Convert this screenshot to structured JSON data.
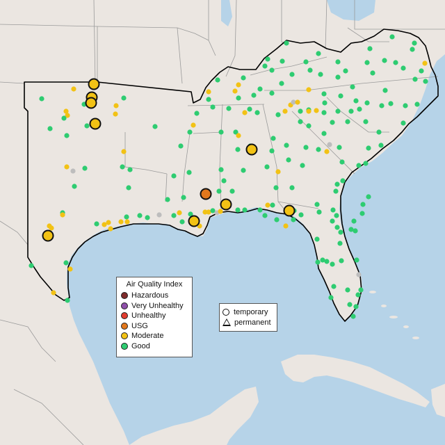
{
  "map": {
    "colors": {
      "land": "#ebe6e1",
      "water": "#b6d3e8",
      "border": "#9a9a9a",
      "outline": "#000000",
      "Hazardous": "#7e2b2b",
      "Very Unhealthy": "#8e4fa9",
      "Unhealthy": "#e13d2f",
      "USG": "#e2781d",
      "Moderate": "#f2c215",
      "Good": "#2ecc71",
      "Unknown": "#bdbdbd"
    },
    "stations_small": [
      [
        "Good",
        60,
        142
      ],
      [
        "Good",
        72,
        185
      ],
      [
        "Good",
        96,
        195
      ],
      [
        "Moderate",
        95,
        160
      ],
      [
        "Moderate",
        97,
        166
      ],
      [
        "Moderate",
        106,
        128
      ],
      [
        "Good",
        92,
        170
      ],
      [
        "Good",
        125,
        181
      ],
      [
        "Good",
        121,
        150
      ],
      [
        "Good",
        178,
        141
      ],
      [
        "Moderate",
        166,
        164
      ],
      [
        "Moderate",
        167,
        152
      ],
      [
        "Good",
        223,
        182
      ],
      [
        "Moderate",
        178,
        218
      ],
      [
        "Good",
        176,
        240
      ],
      [
        "Good",
        187,
        244
      ],
      [
        "Good",
        185,
        270
      ],
      [
        "Moderate",
        96,
        240
      ],
      [
        "Unknown",
        105,
        246
      ],
      [
        "Good",
        122,
        242
      ],
      [
        "Good",
        107,
        268
      ],
      [
        "Good",
        90,
        306
      ],
      [
        "Moderate",
        90,
        309
      ],
      [
        "Moderate",
        71,
        325
      ],
      [
        "Moderate",
        74,
        328
      ],
      [
        "Good",
        45,
        382
      ],
      [
        "Good",
        95,
        378
      ],
      [
        "Moderate",
        101,
        387
      ],
      [
        "Good",
        97,
        432
      ],
      [
        "Moderate",
        77,
        421
      ],
      [
        "Good",
        139,
        322
      ],
      [
        "Moderate",
        150,
        323
      ],
      [
        "Moderate",
        156,
        320
      ],
      [
        "Moderate",
        159,
        329
      ],
      [
        "Good",
        182,
        312
      ],
      [
        "Moderate",
        174,
        319
      ],
      [
        "Moderate",
        183,
        319
      ],
      [
        "Good",
        201,
        310
      ],
      [
        "Good",
        212,
        313
      ],
      [
        "Unknown",
        229,
        309
      ],
      [
        "Good",
        250,
        310
      ],
      [
        "Moderate",
        258,
        306
      ],
      [
        "Good",
        262,
        319
      ],
      [
        "Good",
        274,
        308
      ],
      [
        "Moderate",
        295,
        305
      ],
      [
        "Moderate",
        300,
        305
      ],
      [
        "Good",
        306,
        303
      ],
      [
        "Unknown",
        312,
        306
      ],
      [
        "Moderate",
        317,
        304
      ],
      [
        "Moderate",
        287,
        325
      ],
      [
        "Good",
        264,
        284
      ],
      [
        "Good",
        241,
        287
      ],
      [
        "Good",
        250,
        253
      ],
      [
        "Good",
        260,
        210
      ],
      [
        "Good",
        272,
        248
      ],
      [
        "Good",
        273,
        190
      ],
      [
        "Good",
        283,
        163
      ],
      [
        "Moderate",
        278,
        180
      ],
      [
        "Good",
        306,
        154
      ],
      [
        "Good",
        300,
        143
      ],
      [
        "Moderate",
        300,
        132
      ],
      [
        "Good",
        313,
        115
      ],
      [
        "Moderate",
        343,
        122
      ],
      [
        "Moderate",
        338,
        131
      ],
      [
        "Good",
        343,
        141
      ],
      [
        "Moderate",
        352,
        162
      ],
      [
        "Good",
        329,
        156
      ],
      [
        "Good",
        318,
        190
      ],
      [
        "Good",
        339,
        190
      ],
      [
        "Moderate",
        343,
        195
      ],
      [
        "Good",
        342,
        215
      ],
      [
        "Good",
        360,
        210
      ],
      [
        "Good",
        350,
        245
      ],
      [
        "Good",
        318,
        244
      ],
      [
        "Good",
        322,
        260
      ],
      [
        "Good",
        315,
        275
      ],
      [
        "Good",
        334,
        275
      ],
      [
        "Good",
        342,
        302
      ],
      [
        "Good",
        352,
        302
      ],
      [
        "Good",
        374,
        302
      ],
      [
        "Moderate",
        385,
        295
      ],
      [
        "Good",
        392,
        295
      ],
      [
        "Good",
        381,
        310
      ],
      [
        "Good",
        420,
        270
      ],
      [
        "Good",
        397,
        270
      ],
      [
        "Moderate",
        400,
        247
      ],
      [
        "Good",
        384,
        240
      ],
      [
        "Good",
        391,
        217
      ],
      [
        "Good",
        393,
        199
      ],
      [
        "Good",
        412,
        209
      ],
      [
        "Good",
        415,
        230
      ],
      [
        "Good",
        435,
        238
      ],
      [
        "Good",
        440,
        212
      ],
      [
        "Good",
        458,
        215
      ],
      [
        "Moderate",
        470,
        218
      ],
      [
        "Unknown",
        474,
        208
      ],
      [
        "Good",
        488,
        212
      ],
      [
        "Good",
        492,
        233
      ],
      [
        "Good",
        516,
        238
      ],
      [
        "Good",
        526,
        235
      ],
      [
        "Good",
        530,
        213
      ],
      [
        "Good",
        548,
        209
      ],
      [
        "Good",
        545,
        190
      ],
      [
        "Good",
        526,
        175
      ],
      [
        "Good",
        500,
        175
      ],
      [
        "Good",
        478,
        176
      ],
      [
        "Good",
        466,
        192
      ],
      [
        "Good",
        444,
        181
      ],
      [
        "Good",
        432,
        175
      ],
      [
        "Good",
        466,
        162
      ],
      [
        "Moderate",
        455,
        159
      ],
      [
        "Good",
        486,
        160
      ],
      [
        "Good",
        467,
        148
      ],
      [
        "Moderate",
        410,
        160
      ],
      [
        "Moderate",
        418,
        151
      ],
      [
        "Unknown",
        422,
        147
      ],
      [
        "Moderate",
        428,
        147
      ],
      [
        "Good",
        432,
        160
      ],
      [
        "Good",
        444,
        158
      ],
      [
        "Moderate",
        444,
        160
      ],
      [
        "Good",
        400,
        165
      ],
      [
        "Good",
        370,
        162
      ],
      [
        "Good",
        359,
        157
      ],
      [
        "Good",
        365,
        137
      ],
      [
        "Good",
        374,
        128
      ],
      [
        "Good",
        391,
        134
      ],
      [
        "Good",
        405,
        120
      ],
      [
        "Good",
        391,
        101
      ],
      [
        "Good",
        385,
        85
      ],
      [
        "Good",
        381,
        95
      ],
      [
        "Good",
        412,
        62
      ],
      [
        "Good",
        406,
        88
      ],
      [
        "Good",
        440,
        89
      ],
      [
        "Good",
        446,
        101
      ],
      [
        "Good",
        458,
        77
      ],
      [
        "Good",
        461,
        107
      ],
      [
        "Good",
        486,
        89
      ],
      [
        "Good",
        497,
        102
      ],
      [
        "Good",
        486,
        111
      ],
      [
        "Good",
        528,
        90
      ],
      [
        "Good",
        532,
        70
      ],
      [
        "Good",
        564,
        53
      ],
      [
        "Good",
        553,
        87
      ],
      [
        "Good",
        569,
        90
      ],
      [
        "Good",
        596,
        62
      ],
      [
        "Good",
        593,
        71
      ],
      [
        "Moderate",
        611,
        91
      ],
      [
        "Good",
        606,
        102
      ],
      [
        "Good",
        612,
        117
      ],
      [
        "Good",
        597,
        114
      ],
      [
        "Good",
        554,
        130
      ],
      [
        "Good",
        528,
        148
      ],
      [
        "Good",
        512,
        145
      ],
      [
        "Good",
        517,
        157
      ],
      [
        "Good",
        505,
        160
      ],
      [
        "Good",
        549,
        152
      ],
      [
        "Good",
        562,
        149
      ],
      [
        "Good",
        583,
        152
      ],
      [
        "Good",
        600,
        150
      ],
      [
        "Good",
        580,
        177
      ],
      [
        "Good",
        580,
        98
      ],
      [
        "Good",
        536,
        105
      ],
      [
        "Good",
        507,
        125
      ],
      [
        "Good",
        490,
        138
      ],
      [
        "Good",
        466,
        135
      ],
      [
        "Good",
        420,
        107
      ],
      [
        "Moderate",
        444,
        129
      ],
      [
        "Good",
        350,
        112
      ],
      [
        "Good",
        485,
        265
      ],
      [
        "Good",
        483,
        275
      ],
      [
        "Good",
        493,
        260
      ],
      [
        "Good",
        479,
        302
      ],
      [
        "Good",
        484,
        310
      ],
      [
        "Good",
        459,
        305
      ],
      [
        "Good",
        456,
        344
      ],
      [
        "Good",
        464,
        374
      ],
      [
        "Good",
        478,
        380
      ],
      [
        "Good",
        489,
        350
      ],
      [
        "Good",
        490,
        334
      ],
      [
        "Good",
        491,
        375
      ],
      [
        "Good",
        513,
        374
      ],
      [
        "Good",
        500,
        417
      ],
      [
        "Good",
        480,
        412
      ],
      [
        "Good",
        476,
        428
      ],
      [
        "Good",
        470,
        376
      ],
      [
        "Good",
        457,
        377
      ],
      [
        "Unknown",
        516,
        395
      ],
      [
        "Good",
        515,
        424
      ],
      [
        "Good",
        512,
        441
      ],
      [
        "Good",
        503,
        438
      ],
      [
        "Good",
        508,
        455
      ],
      [
        "Good",
        519,
        417
      ],
      [
        "Good",
        530,
        283
      ],
      [
        "Good",
        522,
        294
      ],
      [
        "Good",
        521,
        307
      ],
      [
        "Good",
        509,
        318
      ],
      [
        "Good",
        511,
        332
      ],
      [
        "Good",
        505,
        330
      ],
      [
        "Moderate",
        411,
        325
      ],
      [
        "Good",
        422,
        316
      ],
      [
        "Good",
        478,
        318
      ],
      [
        "Good",
        423,
        303
      ],
      [
        "Good",
        433,
        309
      ],
      [
        "Good",
        398,
        316
      ],
      [
        "Good",
        456,
        294
      ],
      [
        "Good",
        485,
        327
      ]
    ],
    "stations_large": [
      [
        "Moderate",
        135,
        121
      ],
      [
        "Moderate",
        132,
        140
      ],
      [
        "Moderate",
        131,
        148
      ],
      [
        "Moderate",
        137,
        178
      ],
      [
        "Moderate",
        69,
        339
      ],
      [
        "Moderate",
        279,
        318
      ],
      [
        "Moderate",
        325,
        294
      ],
      [
        "USG",
        296,
        279
      ],
      [
        "Moderate",
        362,
        215
      ],
      [
        "Moderate",
        416,
        303
      ]
    ]
  },
  "aqi_legend": {
    "title": "Air Quality Index",
    "items": [
      {
        "label": "Hazardous",
        "color": "#7e2b2b"
      },
      {
        "label": "Very Unhealthy",
        "color": "#8e4fa9"
      },
      {
        "label": "Unhealthy",
        "color": "#e13d2f"
      },
      {
        "label": "USG",
        "color": "#e2781d"
      },
      {
        "label": "Moderate",
        "color": "#f2c215"
      },
      {
        "label": "Good",
        "color": "#2ecc71"
      }
    ]
  },
  "shape_legend": {
    "temporary": "temporary",
    "permanent": "permanent"
  }
}
